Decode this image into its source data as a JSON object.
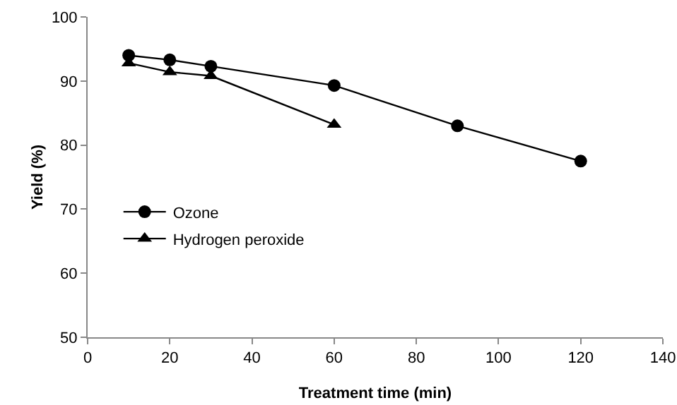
{
  "chart_data": {
    "type": "line",
    "xlabel": "Treatment time (min)",
    "ylabel": "Yield (%)",
    "xlim": [
      0,
      140
    ],
    "xticks": [
      0,
      20,
      40,
      60,
      80,
      100,
      120,
      140
    ],
    "ylim": [
      50,
      100
    ],
    "yticks": [
      50,
      60,
      70,
      80,
      90,
      100
    ],
    "grid": false,
    "legend": "left",
    "line_style": "solid",
    "series": [
      {
        "name": "Ozone",
        "color": "#000000",
        "marker": "circle",
        "x": [
          10,
          20,
          30,
          60,
          90,
          120
        ],
        "values": [
          94,
          93.3,
          92.3,
          89.3,
          83,
          77.5
        ]
      },
      {
        "name": "Hydrogen peroxide",
        "color": "#000000",
        "marker": "triangle",
        "x": [
          10,
          20,
          30,
          60
        ],
        "values": [
          92.8,
          91.4,
          90.8,
          83.2
        ]
      }
    ]
  }
}
